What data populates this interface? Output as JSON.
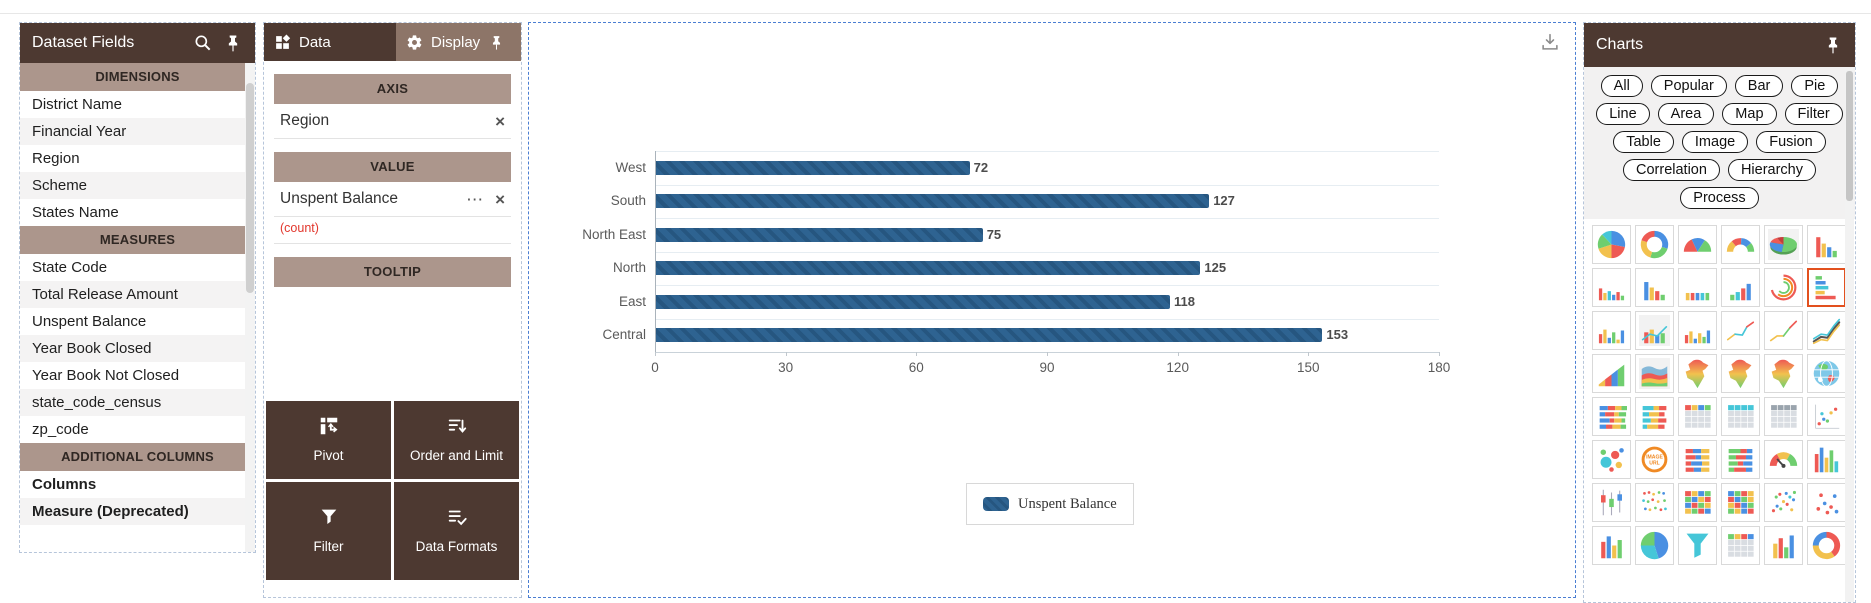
{
  "colors": {
    "panel_header_bg": "#4d3931",
    "section_header_bg": "#ac968c",
    "inactive_tab_bg": "#8d7568",
    "bar_color": "#2e6391",
    "bar_hatch_color": "#265680",
    "count_red": "#e2372d",
    "selected_icon_border": "#e2501e"
  },
  "dataset_fields_panel": {
    "title": "Dataset Fields",
    "icons": [
      "search-icon",
      "pin-icon"
    ],
    "sections": [
      {
        "label": "DIMENSIONS",
        "items": [
          "District Name",
          "Financial Year",
          "Region",
          "Scheme",
          "States Name"
        ]
      },
      {
        "label": "MEASURES",
        "items": [
          "State Code",
          "Total Release Amount",
          "Unspent Balance",
          "Year Book Closed",
          "Year Book Not Closed",
          "state_code_census",
          "zp_code"
        ]
      },
      {
        "label": "ADDITIONAL COLUMNS",
        "items": [
          "Columns",
          "Measure (Deprecated)"
        ]
      }
    ]
  },
  "config_panel": {
    "tabs": [
      {
        "label": "Data",
        "icon": "grid-icon",
        "active": true
      },
      {
        "label": "Display",
        "icon": "gear-icon",
        "pin": true,
        "active": false
      }
    ],
    "axis": {
      "label": "AXIS",
      "fields": [
        {
          "name": "Region"
        }
      ]
    },
    "value": {
      "label": "VALUE",
      "fields": [
        {
          "name": "Unspent Balance",
          "aggregation": "(count)",
          "has_menu": true
        }
      ]
    },
    "tooltip": {
      "label": "TOOLTIP",
      "fields": []
    },
    "buttons": [
      {
        "label": "Pivot",
        "icon": "pivot-icon"
      },
      {
        "label": "Order and Limit",
        "icon": "order-limit-icon"
      },
      {
        "label": "Filter",
        "icon": "filter-icon"
      },
      {
        "label": "Data Formats",
        "icon": "data-formats-icon"
      }
    ]
  },
  "chart_panel": {
    "download_icon": "download-icon",
    "legend_label": "Unspent Balance"
  },
  "chart_data": {
    "type": "bar",
    "orientation": "horizontal",
    "title": "",
    "categories": [
      "West",
      "South",
      "North East",
      "North",
      "East",
      "Central"
    ],
    "values": [
      72,
      127,
      75,
      125,
      118,
      153
    ],
    "series_name": "Unspent Balance",
    "xlabel": "",
    "ylabel": "",
    "xlim": [
      0,
      180
    ],
    "xticks": [
      0,
      30,
      60,
      90,
      120,
      150,
      180
    ],
    "grid": true,
    "legend_position": "bottom",
    "bar_color": "#2e6391"
  },
  "charts_panel": {
    "title": "Charts",
    "pin_icon": "pin-icon",
    "chip_rows": [
      [
        "All",
        "Popular",
        "Bar",
        "Pie"
      ],
      [
        "Line",
        "Area",
        "Map",
        "Filter"
      ],
      [
        "Table",
        "Image",
        "Fusion"
      ],
      [
        "Correlation",
        "Hierarchy"
      ],
      [
        "Process"
      ]
    ],
    "image_url_label": "IMAGE URL",
    "selected_chart": "horizontal-bar-chart",
    "icons": [
      {
        "name": "pie-chart"
      },
      {
        "name": "donut-chart"
      },
      {
        "name": "semi-pie-chart"
      },
      {
        "name": "gauge-arc-chart"
      },
      {
        "name": "pie-3d-chart"
      },
      {
        "name": "bar-descending-chart"
      },
      {
        "name": "column-multicolor-chart"
      },
      {
        "name": "column-descending-chart"
      },
      {
        "name": "column-small-chart"
      },
      {
        "name": "column-3d-chart"
      },
      {
        "name": "radial-rings-chart"
      },
      {
        "name": "horizontal-bar-chart",
        "selected": true
      },
      {
        "name": "column-grouped-chart"
      },
      {
        "name": "column-line-combo-chart"
      },
      {
        "name": "column-grouped-2-chart"
      },
      {
        "name": "line-chart"
      },
      {
        "name": "line-2-chart"
      },
      {
        "name": "multi-line-chart"
      },
      {
        "name": "area-steps-chart"
      },
      {
        "name": "stacked-area-chart"
      },
      {
        "name": "india-map-chart"
      },
      {
        "name": "india-map-2-chart"
      },
      {
        "name": "india-map-3-chart"
      },
      {
        "name": "world-globe-chart"
      },
      {
        "name": "stacked-hbar-chart"
      },
      {
        "name": "stacked-hbar-2-chart"
      },
      {
        "name": "table-chart"
      },
      {
        "name": "table-2-chart"
      },
      {
        "name": "table-3-chart"
      },
      {
        "name": "scatter-line-chart"
      },
      {
        "name": "scatter-bubble-chart"
      },
      {
        "name": "image-url-chart"
      },
      {
        "name": "stacked-hbar-3-chart"
      },
      {
        "name": "stacked-hbar-4-chart"
      },
      {
        "name": "gauge-needle-chart"
      },
      {
        "name": "column-tall-chart"
      },
      {
        "name": "candlestick-chart"
      },
      {
        "name": "strip-plot-chart"
      },
      {
        "name": "table-color-chart"
      },
      {
        "name": "table-color-2-chart"
      },
      {
        "name": "scatter-dots-chart"
      },
      {
        "name": "scatter-sparse-chart"
      },
      {
        "name": "column-cut-chart"
      },
      {
        "name": "pie-cut-chart"
      },
      {
        "name": "funnel-cut-chart"
      },
      {
        "name": "table-cut-chart"
      },
      {
        "name": "column-cut-2-chart"
      },
      {
        "name": "donut-cut-chart"
      }
    ]
  }
}
